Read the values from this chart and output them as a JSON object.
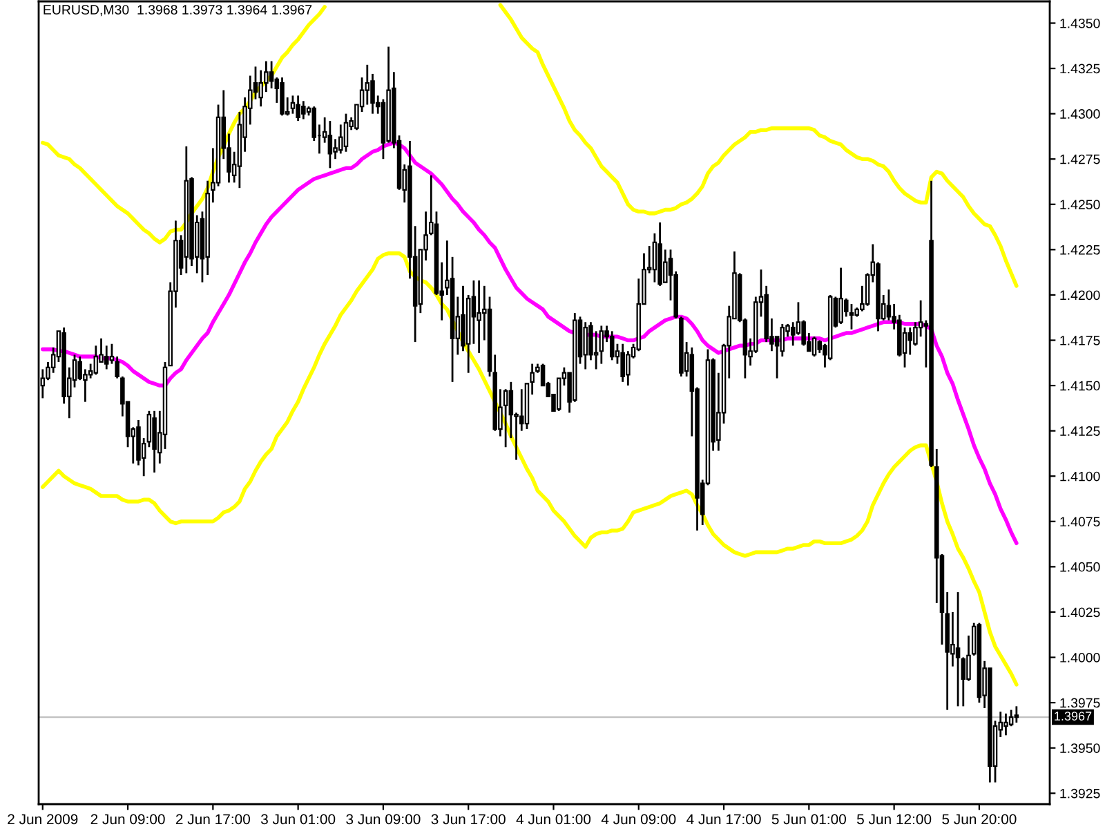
{
  "chart_data": {
    "type": "candlestick",
    "title": "EURUSD,M30  1.3968 1.3973 1.3964 1.3967",
    "color": "#000000",
    "categories": [
      "2 Jun 2009",
      null,
      null,
      null,
      null,
      null,
      null,
      null,
      null,
      null,
      null,
      null,
      null,
      null,
      null,
      null,
      "2 Jun 09:00",
      null,
      null,
      null,
      null,
      null,
      null,
      null,
      null,
      null,
      null,
      null,
      null,
      null,
      null,
      null,
      "2 Jun 17:00",
      null,
      null,
      null,
      null,
      null,
      null,
      null,
      null,
      null,
      null,
      null,
      null,
      null,
      null,
      null,
      "3 Jun 01:00",
      null,
      null,
      null,
      null,
      null,
      null,
      null,
      null,
      null,
      null,
      null,
      null,
      null,
      null,
      null,
      "3 Jun 09:00",
      null,
      null,
      null,
      null,
      null,
      null,
      null,
      null,
      null,
      null,
      null,
      null,
      null,
      null,
      null,
      "3 Jun 17:00",
      null,
      null,
      null,
      null,
      null,
      null,
      null,
      null,
      null,
      null,
      null,
      null,
      null,
      null,
      null,
      "4 Jun 01:00",
      null,
      null,
      null,
      null,
      null,
      null,
      null,
      null,
      null,
      null,
      null,
      null,
      null,
      null,
      null,
      "4 Jun 09:00",
      null,
      null,
      null,
      null,
      null,
      null,
      null,
      null,
      null,
      null,
      null,
      null,
      null,
      null,
      null,
      "4 Jun 17:00",
      null,
      null,
      null,
      null,
      null,
      null,
      null,
      null,
      null,
      null,
      null,
      null,
      null,
      null,
      null,
      "5 Jun 01:00",
      null,
      null,
      null,
      null,
      null,
      null,
      null,
      null,
      null,
      null,
      null,
      null,
      null,
      null,
      null,
      "5 Jun 12:00",
      null,
      null,
      null,
      null,
      null,
      null,
      null,
      null,
      null,
      null,
      null,
      null,
      null,
      null,
      null,
      "5 Jun 20:00",
      null,
      null,
      null,
      null,
      null,
      null,
      null
    ],
    "ohlc": [
      [
        1.415,
        1.4159,
        1.4143,
        1.4154
      ],
      [
        1.4154,
        1.4163,
        1.4153,
        1.416
      ],
      [
        1.416,
        1.4171,
        1.4157,
        1.4167
      ],
      [
        1.4166,
        1.418,
        1.4163,
        1.418
      ],
      [
        1.4179,
        1.4182,
        1.414,
        1.4144
      ],
      [
        1.4144,
        1.416,
        1.4132,
        1.4154
      ],
      [
        1.4153,
        1.4167,
        1.4149,
        1.4164
      ],
      [
        1.4163,
        1.4166,
        1.4153,
        1.4154
      ],
      [
        1.4153,
        1.4159,
        1.4141,
        1.4156
      ],
      [
        1.4156,
        1.4162,
        1.4154,
        1.4158
      ],
      [
        1.4157,
        1.4172,
        1.4156,
        1.4166
      ],
      [
        1.4163,
        1.4176,
        1.4163,
        1.4167
      ],
      [
        1.4166,
        1.4172,
        1.4159,
        1.4162
      ],
      [
        1.4164,
        1.4173,
        1.4162,
        1.4166
      ],
      [
        1.4163,
        1.4166,
        1.4154,
        1.4155
      ],
      [
        1.4154,
        1.4155,
        1.4133,
        1.414
      ],
      [
        1.4141,
        1.4141,
        1.4116,
        1.4122
      ],
      [
        1.4122,
        1.4127,
        1.4107,
        1.4126
      ],
      [
        1.4127,
        1.4131,
        1.4106,
        1.4109
      ],
      [
        1.411,
        1.4121,
        1.41,
        1.4118
      ],
      [
        1.4119,
        1.4136,
        1.4116,
        1.4134
      ],
      [
        1.4132,
        1.4136,
        1.4102,
        1.4115
      ],
      [
        1.4113,
        1.4136,
        1.4107,
        1.4124
      ],
      [
        1.4123,
        1.4163,
        1.4115,
        1.416
      ],
      [
        1.4161,
        1.4207,
        1.4161,
        1.4202
      ],
      [
        1.4202,
        1.4241,
        1.4193,
        1.423
      ],
      [
        1.423,
        1.4233,
        1.4211,
        1.4215
      ],
      [
        1.4221,
        1.4282,
        1.4212,
        1.4263
      ],
      [
        1.4264,
        1.4265,
        1.4216,
        1.422
      ],
      [
        1.4221,
        1.4244,
        1.4212,
        1.424
      ],
      [
        1.4242,
        1.4246,
        1.4207,
        1.422
      ],
      [
        1.4221,
        1.4263,
        1.4211,
        1.4256
      ],
      [
        1.4258,
        1.4281,
        1.4251,
        1.4262
      ],
      [
        1.4262,
        1.4305,
        1.426,
        1.4298
      ],
      [
        1.4298,
        1.4313,
        1.4275,
        1.4281
      ],
      [
        1.4281,
        1.4289,
        1.4262,
        1.4268
      ],
      [
        1.4266,
        1.4279,
        1.4262,
        1.4272
      ],
      [
        1.4271,
        1.4301,
        1.4259,
        1.4294
      ],
      [
        1.4287,
        1.4309,
        1.4279,
        1.4304
      ],
      [
        1.4303,
        1.4321,
        1.4294,
        1.4313
      ],
      [
        1.4317,
        1.4326,
        1.4308,
        1.4312
      ],
      [
        1.4309,
        1.4324,
        1.4304,
        1.4317
      ],
      [
        1.4317,
        1.4329,
        1.4312,
        1.4323
      ],
      [
        1.4323,
        1.4329,
        1.4314,
        1.4318
      ],
      [
        1.4319,
        1.432,
        1.4306,
        1.4314
      ],
      [
        1.4317,
        1.432,
        1.4299,
        1.43
      ],
      [
        1.43,
        1.4309,
        1.4299,
        1.4301
      ],
      [
        1.4303,
        1.431,
        1.43,
        1.4306
      ],
      [
        1.4305,
        1.431,
        1.4296,
        1.4298
      ],
      [
        1.4304,
        1.4307,
        1.4297,
        1.43
      ],
      [
        1.4301,
        1.4304,
        1.4299,
        1.4303
      ],
      [
        1.4303,
        1.4304,
        1.4285,
        1.4287
      ],
      [
        1.4288,
        1.4294,
        1.4278,
        1.4288
      ],
      [
        1.4287,
        1.4298,
        1.4284,
        1.429
      ],
      [
        1.4288,
        1.4296,
        1.427,
        1.4278
      ],
      [
        1.4279,
        1.4286,
        1.4275,
        1.4281
      ],
      [
        1.428,
        1.4294,
        1.4278,
        1.4287
      ],
      [
        1.4282,
        1.43,
        1.4279,
        1.4295
      ],
      [
        1.4293,
        1.4298,
        1.4291,
        1.4296
      ],
      [
        1.4292,
        1.4305,
        1.4291,
        1.4305
      ],
      [
        1.4304,
        1.432,
        1.4301,
        1.4313
      ],
      [
        1.4313,
        1.4327,
        1.4305,
        1.4317
      ],
      [
        1.4318,
        1.4322,
        1.43,
        1.4306
      ],
      [
        1.4306,
        1.431,
        1.43,
        1.4304
      ],
      [
        1.4306,
        1.4308,
        1.4275,
        1.4284
      ],
      [
        1.4285,
        1.4337,
        1.4284,
        1.4313
      ],
      [
        1.4314,
        1.4323,
        1.4281,
        1.4284
      ],
      [
        1.4285,
        1.4288,
        1.4258,
        1.4259
      ],
      [
        1.4258,
        1.4272,
        1.4251,
        1.4269
      ],
      [
        1.4271,
        1.4285,
        1.4209,
        1.4221
      ],
      [
        1.4221,
        1.4238,
        1.4174,
        1.4194
      ],
      [
        1.4195,
        1.4225,
        1.419,
        1.4225
      ],
      [
        1.4225,
        1.4246,
        1.4219,
        1.4233
      ],
      [
        1.4234,
        1.4266,
        1.4233,
        1.424
      ],
      [
        1.4239,
        1.4246,
        1.42,
        1.4201
      ],
      [
        1.4202,
        1.4218,
        1.4186,
        1.42
      ],
      [
        1.4204,
        1.423,
        1.42,
        1.4208
      ],
      [
        1.4209,
        1.4221,
        1.4152,
        1.4176
      ],
      [
        1.4176,
        1.4199,
        1.4167,
        1.4188
      ],
      [
        1.4189,
        1.4205,
        1.4169,
        1.4172
      ],
      [
        1.4173,
        1.42,
        1.4157,
        1.4198
      ],
      [
        1.4199,
        1.4208,
        1.4173,
        1.4188
      ],
      [
        1.4186,
        1.4208,
        1.4168,
        1.419
      ],
      [
        1.419,
        1.4205,
        1.4175,
        1.4192
      ],
      [
        1.4192,
        1.4199,
        1.4155,
        1.4158
      ],
      [
        1.4157,
        1.4167,
        1.4125,
        1.4126
      ],
      [
        1.4126,
        1.4148,
        1.4122,
        1.4138
      ],
      [
        1.4139,
        1.4148,
        1.4116,
        1.4147
      ],
      [
        1.4147,
        1.4152,
        1.4121,
        1.4134
      ],
      [
        1.4133,
        1.4135,
        1.4109,
        1.4134
      ],
      [
        1.4133,
        1.4148,
        1.4125,
        1.4129
      ],
      [
        1.4129,
        1.4151,
        1.4126,
        1.4151
      ],
      [
        1.4152,
        1.4162,
        1.4145,
        1.4157
      ],
      [
        1.4158,
        1.4162,
        1.4157,
        1.416
      ],
      [
        1.4161,
        1.4162,
        1.415,
        1.415
      ],
      [
        1.4151,
        1.4152,
        1.4144,
        1.4144
      ],
      [
        1.4145,
        1.4145,
        1.4136,
        1.4136
      ],
      [
        1.4137,
        1.4154,
        1.4136,
        1.4154
      ],
      [
        1.4154,
        1.416,
        1.415,
        1.4157
      ],
      [
        1.4157,
        1.4157,
        1.4135,
        1.4141
      ],
      [
        1.4142,
        1.419,
        1.4141,
        1.4186
      ],
      [
        1.4186,
        1.4188,
        1.4162,
        1.4166
      ],
      [
        1.4167,
        1.4185,
        1.4159,
        1.4182
      ],
      [
        1.4183,
        1.4185,
        1.4164,
        1.4167
      ],
      [
        1.4167,
        1.418,
        1.4159,
        1.4168
      ],
      [
        1.4169,
        1.4183,
        1.4162,
        1.418
      ],
      [
        1.418,
        1.4183,
        1.4174,
        1.4177
      ],
      [
        1.4177,
        1.418,
        1.4164,
        1.4166
      ],
      [
        1.4166,
        1.4173,
        1.4162,
        1.4169
      ],
      [
        1.4168,
        1.4173,
        1.4152,
        1.4155
      ],
      [
        1.4156,
        1.4169,
        1.415,
        1.4167
      ],
      [
        1.4166,
        1.4173,
        1.4165,
        1.4171
      ],
      [
        1.417,
        1.4209,
        1.4169,
        1.4195
      ],
      [
        1.4195,
        1.4223,
        1.4195,
        1.4214
      ],
      [
        1.4214,
        1.4227,
        1.4212,
        1.4215
      ],
      [
        1.4214,
        1.4234,
        1.4207,
        1.4229
      ],
      [
        1.4228,
        1.424,
        1.4205,
        1.4206
      ],
      [
        1.4207,
        1.4225,
        1.4207,
        1.4218
      ],
      [
        1.422,
        1.4225,
        1.4197,
        1.4211
      ],
      [
        1.4211,
        1.4213,
        1.4187,
        1.4188
      ],
      [
        1.4187,
        1.4188,
        1.4155,
        1.4157
      ],
      [
        1.4158,
        1.4174,
        1.4155,
        1.4168
      ],
      [
        1.4167,
        1.4171,
        1.4122,
        1.4147
      ],
      [
        1.4148,
        1.4149,
        1.407,
        1.4088
      ],
      [
        1.4096,
        1.4098,
        1.4073,
        1.4079
      ],
      [
        1.4096,
        1.417,
        1.4095,
        1.4164
      ],
      [
        1.4164,
        1.4165,
        1.4114,
        1.4119
      ],
      [
        1.412,
        1.4157,
        1.4114,
        1.4135
      ],
      [
        1.4135,
        1.4173,
        1.4129,
        1.4172
      ],
      [
        1.4172,
        1.4194,
        1.4154,
        1.4188
      ],
      [
        1.4187,
        1.4224,
        1.4187,
        1.4212
      ],
      [
        1.4211,
        1.4212,
        1.4185,
        1.4186
      ],
      [
        1.4186,
        1.4187,
        1.4154,
        1.4167
      ],
      [
        1.4166,
        1.4176,
        1.4161,
        1.4169
      ],
      [
        1.4169,
        1.4199,
        1.4168,
        1.4196
      ],
      [
        1.4196,
        1.4214,
        1.4188,
        1.4199
      ],
      [
        1.42,
        1.4205,
        1.4174,
        1.4176
      ],
      [
        1.4177,
        1.4187,
        1.4169,
        1.4173
      ],
      [
        1.4177,
        1.4177,
        1.4154,
        1.4172
      ],
      [
        1.4169,
        1.4184,
        1.4166,
        1.4182
      ],
      [
        1.418,
        1.4184,
        1.4177,
        1.4183
      ],
      [
        1.4182,
        1.4185,
        1.4172,
        1.4178
      ],
      [
        1.4179,
        1.4196,
        1.4178,
        1.4185
      ],
      [
        1.4185,
        1.4186,
        1.4172,
        1.4173
      ],
      [
        1.4174,
        1.4179,
        1.4169,
        1.4169
      ],
      [
        1.4167,
        1.4177,
        1.4166,
        1.4176
      ],
      [
        1.4174,
        1.4175,
        1.4168,
        1.417
      ],
      [
        1.4172,
        1.4173,
        1.416,
        1.4167
      ],
      [
        1.4165,
        1.42,
        1.4164,
        1.4199
      ],
      [
        1.4198,
        1.4199,
        1.4182,
        1.4183
      ],
      [
        1.4185,
        1.4215,
        1.4184,
        1.4198
      ],
      [
        1.4197,
        1.4198,
        1.4188,
        1.4191
      ],
      [
        1.419,
        1.4195,
        1.4181,
        1.4189
      ],
      [
        1.4189,
        1.4193,
        1.4188,
        1.4192
      ],
      [
        1.4192,
        1.4205,
        1.4191,
        1.4195
      ],
      [
        1.4195,
        1.4212,
        1.4194,
        1.4211
      ],
      [
        1.4211,
        1.4228,
        1.4207,
        1.4218
      ],
      [
        1.4217,
        1.4218,
        1.418,
        1.4187
      ],
      [
        1.4187,
        1.42,
        1.4186,
        1.4195
      ],
      [
        1.4194,
        1.4203,
        1.4186,
        1.4188
      ],
      [
        1.4188,
        1.4195,
        1.4181,
        1.4185
      ],
      [
        1.4186,
        1.4189,
        1.4166,
        1.4167
      ],
      [
        1.4168,
        1.4182,
        1.416,
        1.4179
      ],
      [
        1.4179,
        1.4182,
        1.4167,
        1.4175
      ],
      [
        1.4173,
        1.4185,
        1.4172,
        1.4182
      ],
      [
        1.4182,
        1.4197,
        1.4177,
        1.4185
      ],
      [
        1.4184,
        1.4186,
        1.416,
        1.4183
      ],
      [
        1.423,
        1.4263,
        1.4105,
        1.4106
      ],
      [
        1.4105,
        1.4115,
        1.403,
        1.4055
      ],
      [
        1.4056,
        1.4057,
        1.4007,
        1.4025
      ],
      [
        1.4024,
        1.4036,
        1.3971,
        1.4003
      ],
      [
        1.4002,
        1.4025,
        1.3995,
        1.4007
      ],
      [
        1.4005,
        1.4036,
        1.3973,
        1.4
      ],
      [
        1.3999,
        1.4,
        1.3973,
        1.3988
      ],
      [
        1.3988,
        1.4012,
        1.3987,
        1.4001
      ],
      [
        1.4002,
        1.4019,
        1.4001,
        1.4017
      ],
      [
        1.4018,
        1.4019,
        1.3975,
        1.3978
      ],
      [
        1.3979,
        1.3998,
        1.3972,
        1.3994
      ],
      [
        1.3994,
        1.3994,
        1.3931,
        1.394
      ],
      [
        1.394,
        1.3965,
        1.3931,
        1.3962
      ],
      [
        1.396,
        1.397,
        1.3956,
        1.3964
      ],
      [
        1.3962,
        1.3969,
        1.3957,
        1.3964
      ],
      [
        1.3963,
        1.3971,
        1.3962,
        1.3967
      ],
      [
        1.3968,
        1.3973,
        1.3964,
        1.3967
      ]
    ],
    "series": [
      {
        "type": "line",
        "color": "#ffff00",
        "values": [
          1.4284,
          1.4283,
          1.428,
          1.4277,
          1.4276,
          1.4275,
          1.4272,
          1.427,
          1.4267,
          1.4264,
          1.4261,
          1.4258,
          1.4255,
          1.4252,
          1.4249,
          1.4247,
          1.4245,
          1.4242,
          1.4239,
          1.4236,
          1.4234,
          1.4231,
          1.4229,
          1.4231,
          1.4235,
          1.4236,
          1.4236,
          1.424,
          1.4245,
          1.4249,
          1.4253,
          1.4259,
          1.4268,
          1.4276,
          1.4282,
          1.4289,
          1.4295,
          1.43,
          1.4303,
          1.4307,
          1.4312,
          1.4315,
          1.4318,
          1.4321,
          1.4326,
          1.4331,
          1.4334,
          1.4338,
          1.4341,
          1.4345,
          1.4349,
          1.4352,
          1.4355,
          1.4359,
          null,
          null,
          null,
          null,
          null,
          null,
          null,
          null,
          null,
          null,
          null,
          null,
          null,
          null,
          null,
          null,
          null,
          null,
          null,
          null,
          null,
          null,
          null,
          null,
          null,
          null,
          null,
          null,
          null,
          null,
          null,
          null,
          1.436,
          1.4356,
          1.4352,
          1.4347,
          1.4342,
          1.4339,
          1.4336,
          1.4334,
          1.4327,
          1.4321,
          1.4315,
          1.4309,
          1.4303,
          1.4296,
          1.4291,
          1.4288,
          1.4284,
          1.4281,
          1.4276,
          1.4271,
          1.4268,
          1.4265,
          1.4262,
          1.4256,
          1.425,
          1.4247,
          1.4246,
          1.4246,
          1.4245,
          1.4245,
          1.4246,
          1.4247,
          1.4247,
          1.4248,
          1.425,
          1.4251,
          1.4253,
          1.4256,
          1.426,
          1.4267,
          1.4271,
          1.4273,
          1.4277,
          1.428,
          1.4283,
          1.4285,
          1.4287,
          1.429,
          1.429,
          1.4291,
          1.4291,
          1.4292,
          1.4292,
          1.4292,
          1.4292,
          1.4292,
          1.4292,
          1.4292,
          1.4292,
          1.4291,
          1.4288,
          1.4287,
          1.4285,
          1.4284,
          1.4283,
          1.428,
          1.4278,
          1.4276,
          1.4275,
          1.4275,
          1.4274,
          1.4272,
          1.4271,
          1.4268,
          1.4263,
          1.4259,
          1.4256,
          1.4254,
          1.4252,
          1.4251,
          1.4251,
          1.4265,
          1.4268,
          1.4267,
          1.4263,
          1.426,
          1.4257,
          1.4254,
          1.4249,
          1.4245,
          1.4242,
          1.4239,
          1.4238,
          1.4233,
          1.4227,
          1.4219,
          1.4212,
          1.4205
        ]
      },
      {
        "type": "line",
        "color": "#ff00ff",
        "values": [
          1.417,
          1.417,
          1.417,
          1.4169,
          1.4169,
          1.4168,
          1.4167,
          1.4166,
          1.4166,
          1.4166,
          1.4166,
          1.4165,
          1.4165,
          1.4165,
          1.4164,
          1.4163,
          1.4161,
          1.4158,
          1.4156,
          1.4154,
          1.4152,
          1.4151,
          1.415,
          1.415,
          1.4154,
          1.4157,
          1.4159,
          1.4164,
          1.4168,
          1.4172,
          1.4176,
          1.4179,
          1.4185,
          1.419,
          1.4195,
          1.42,
          1.4206,
          1.4212,
          1.4218,
          1.4223,
          1.4229,
          1.4234,
          1.4239,
          1.4243,
          1.4246,
          1.4249,
          1.4252,
          1.4255,
          1.4258,
          1.426,
          1.4262,
          1.4264,
          1.4265,
          1.4266,
          1.4267,
          1.4268,
          1.4269,
          1.427,
          1.427,
          1.4272,
          1.4275,
          1.4277,
          1.4279,
          1.428,
          1.4282,
          1.4283,
          1.4284,
          1.4283,
          1.4281,
          1.4277,
          1.4273,
          1.4271,
          1.4269,
          1.4267,
          1.4264,
          1.4261,
          1.4257,
          1.4253,
          1.425,
          1.4246,
          1.4243,
          1.424,
          1.4236,
          1.4233,
          1.4229,
          1.4226,
          1.422,
          1.4214,
          1.4209,
          1.4204,
          1.4201,
          1.4198,
          1.4196,
          1.4194,
          1.4192,
          1.4188,
          1.4186,
          1.4184,
          1.4182,
          1.418,
          1.4179,
          null,
          1.4178,
          1.4178,
          1.4178,
          1.4177,
          1.4177,
          1.4177,
          1.4177,
          1.4176,
          1.4175,
          1.4175,
          1.4176,
          1.4177,
          1.418,
          1.4182,
          1.4184,
          1.4186,
          1.4187,
          1.4188,
          1.4188,
          1.4187,
          1.4184,
          1.418,
          1.4175,
          1.4172,
          1.417,
          1.4168,
          1.4169,
          1.417,
          1.4171,
          1.4172,
          1.4172,
          1.4173,
          1.4173,
          1.4175,
          1.4175,
          1.4175,
          1.4175,
          1.4175,
          1.4176,
          1.4176,
          1.4176,
          1.4176,
          1.4176,
          1.4176,
          1.4176,
          1.4175,
          1.4176,
          1.4177,
          1.4178,
          1.4179,
          1.4179,
          1.418,
          1.4181,
          1.4182,
          1.4183,
          1.4184,
          1.4185,
          1.4185,
          1.4185,
          1.4185,
          1.4184,
          1.4184,
          1.4184,
          1.4184,
          1.4183,
          1.4181,
          1.4172,
          1.4166,
          1.4157,
          1.4151,
          1.4142,
          1.4134,
          1.4126,
          1.4117,
          1.411,
          1.4104,
          1.4096,
          1.409,
          1.4082,
          1.4076,
          1.4069,
          1.4063
        ]
      },
      {
        "type": "line",
        "color": "#ffff00",
        "values": [
          1.4094,
          1.4097,
          1.41,
          1.4103,
          1.41,
          1.4098,
          1.4096,
          1.4095,
          1.4094,
          1.4093,
          1.4091,
          1.4089,
          1.4089,
          1.4089,
          1.4089,
          1.4087,
          1.4086,
          1.4086,
          1.4086,
          1.4087,
          1.4087,
          1.4085,
          1.4081,
          1.4078,
          1.4075,
          1.4074,
          1.4075,
          1.4075,
          1.4075,
          1.4075,
          1.4075,
          1.4075,
          1.4075,
          1.4077,
          1.408,
          1.4081,
          1.4083,
          1.4086,
          1.4093,
          1.4097,
          1.4103,
          1.4108,
          1.4112,
          1.4115,
          1.4122,
          1.4126,
          1.413,
          1.4136,
          1.4141,
          1.4148,
          1.4154,
          1.416,
          1.4167,
          1.4173,
          1.4178,
          1.4183,
          1.4189,
          1.4193,
          1.4197,
          1.4202,
          1.4206,
          1.421,
          1.4214,
          1.422,
          1.4222,
          1.4223,
          1.4223,
          1.4223,
          1.4221,
          1.4213,
          1.421,
          1.4208,
          1.4207,
          1.4204,
          1.42,
          1.4195,
          1.4192,
          1.4186,
          1.418,
          1.4174,
          1.4169,
          1.4164,
          1.4159,
          1.4153,
          1.4147,
          1.4141,
          1.4135,
          1.4129,
          1.4122,
          1.4116,
          1.411,
          1.4104,
          1.4099,
          1.4092,
          1.4089,
          1.4086,
          1.4081,
          1.4078,
          1.4075,
          1.4071,
          1.4067,
          1.4064,
          1.4061,
          1.4066,
          1.4068,
          1.4069,
          1.4069,
          1.407,
          1.407,
          1.4071,
          1.4075,
          1.408,
          1.4081,
          1.4082,
          1.4083,
          1.4084,
          1.4085,
          1.4087,
          1.4089,
          1.409,
          1.4091,
          1.4092,
          1.409,
          1.4084,
          1.4079,
          1.4073,
          1.4068,
          1.4065,
          1.4062,
          1.406,
          1.4058,
          1.4057,
          1.4056,
          1.4057,
          1.4058,
          1.4058,
          1.4058,
          1.4058,
          1.4058,
          1.4059,
          1.406,
          1.406,
          1.4061,
          1.4062,
          1.4062,
          1.4064,
          1.4064,
          1.4063,
          1.4063,
          1.4063,
          1.4063,
          1.4064,
          1.4065,
          1.4067,
          1.407,
          1.4075,
          1.4084,
          1.409,
          1.4096,
          1.4101,
          1.4105,
          1.4108,
          1.4111,
          1.4114,
          1.4116,
          1.4117,
          1.4117,
          1.4107,
          1.4097,
          1.4085,
          1.4075,
          1.4068,
          1.406,
          1.4055,
          1.4049,
          1.4042,
          1.4036,
          1.4025,
          1.4014,
          1.4006,
          1.4001,
          1.3996,
          1.3991,
          1.3985
        ]
      }
    ],
    "ylim": [
      1.3919,
      1.4362
    ],
    "yticks": [
      {
        "value": 1.3925,
        "label": "1.3925"
      },
      {
        "value": 1.395,
        "label": "1.3950"
      },
      {
        "value": 1.3975,
        "label": "1.3975"
      },
      {
        "value": 1.4,
        "label": "1.4000"
      },
      {
        "value": 1.4025,
        "label": "1.4025"
      },
      {
        "value": 1.405,
        "label": "1.4050"
      },
      {
        "value": 1.4075,
        "label": "1.4075"
      },
      {
        "value": 1.41,
        "label": "1.4100"
      },
      {
        "value": 1.4125,
        "label": "1.4125"
      },
      {
        "value": 1.415,
        "label": "1.4150"
      },
      {
        "value": 1.4175,
        "label": "1.4175"
      },
      {
        "value": 1.42,
        "label": "1.4200"
      },
      {
        "value": 1.4225,
        "label": "1.4225"
      },
      {
        "value": 1.425,
        "label": "1.4250"
      },
      {
        "value": 1.4275,
        "label": "1.4275"
      },
      {
        "value": 1.43,
        "label": "1.4300"
      },
      {
        "value": 1.4325,
        "label": "1.4325"
      },
      {
        "value": 1.435,
        "label": "1.4350"
      }
    ],
    "ref_lines": [
      {
        "axis": "y",
        "value": 1.3967,
        "label": "1.3967",
        "color": "#c0c0c0"
      }
    ]
  }
}
